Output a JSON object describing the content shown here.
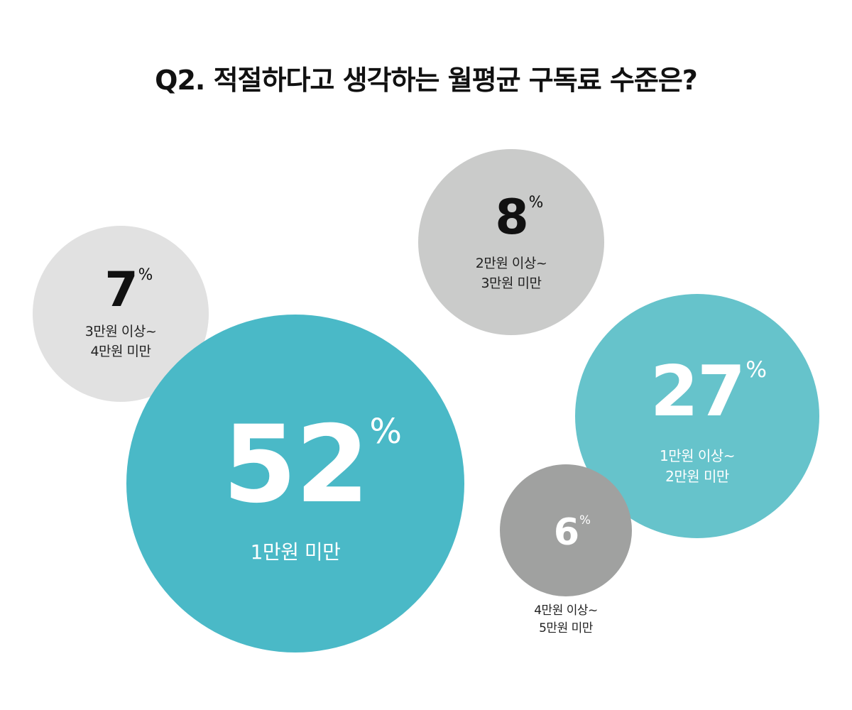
{
  "title": "Q2. 적절하다고 생각하는 월평균 구독료 수준은?",
  "chart_data": {
    "type": "bubble",
    "unit": "%",
    "categories": [
      "1만원 미만",
      "1만원 이상~\n2만원 미만",
      "2만원 이상~\n3만원 미만",
      "3만원 이상~\n4만원 미만",
      "4만원 이상~\n5만원 미만"
    ],
    "values": [
      52,
      27,
      8,
      7,
      6
    ],
    "colors": [
      "#4ab9c7",
      "#66c3cb",
      "#cacbca",
      "#e1e1e1",
      "#a0a1a0"
    ]
  }
}
